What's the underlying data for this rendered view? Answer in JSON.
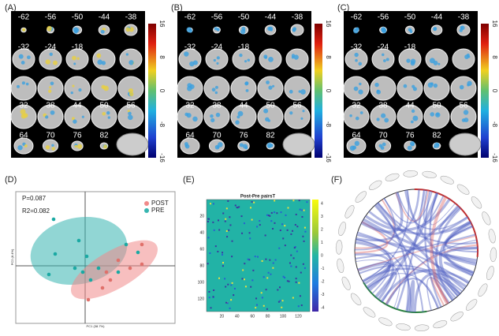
{
  "panels": {
    "A": "(A)",
    "B": "(B)",
    "C": "(C)"
  },
  "slices": {
    "row1": [
      "-62",
      "-56",
      "-50",
      "-44",
      "-38"
    ],
    "row2": [
      "-32",
      "-24",
      "-18"
    ],
    "row4": [
      "32",
      "38",
      "44",
      "50",
      "56"
    ],
    "row5": [
      "64",
      "70",
      "76",
      "82"
    ]
  },
  "colorbar_ticks": [
    "16",
    "8",
    "0",
    "-8",
    "-16"
  ],
  "pca": {
    "label": "(D)",
    "stats": [
      "P=0.087",
      "R2=0.082"
    ],
    "legend": [
      "POST",
      "PRE"
    ],
    "x_axis": "PC1 (38.7%)",
    "y_axis": "PC2 (8.4%)"
  },
  "matrix": {
    "label": "(E)",
    "title": "Post-Pre pairsT",
    "xticks": [
      "20",
      "40",
      "60",
      "80",
      "100",
      "120"
    ],
    "yticks": [
      "20",
      "40",
      "60",
      "80",
      "100",
      "120"
    ],
    "colorbar": [
      "4",
      "3",
      "2",
      "1",
      "0",
      "-1",
      "-2",
      "-3",
      "-4"
    ]
  },
  "chord": {
    "label": "(F)"
  }
}
